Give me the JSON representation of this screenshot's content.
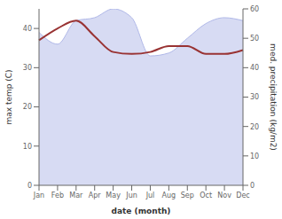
{
  "chart_data": {
    "type": "line",
    "categories": [
      "Jan",
      "Feb",
      "Mar",
      "Apr",
      "May",
      "Jun",
      "Jul",
      "Aug",
      "Sep",
      "Oct",
      "Nov",
      "Dec"
    ],
    "series": [
      {
        "type": "area",
        "axis": "y2",
        "color": "#b0b8e8",
        "values": [
          52,
          48,
          56,
          57,
          60,
          57,
          44,
          45,
          50,
          55,
          57,
          56
        ]
      },
      {
        "type": "line",
        "color": "#993333",
        "values": [
          37,
          40,
          42,
          38,
          34,
          33.5,
          34,
          35.5,
          35.5,
          33.5,
          33.5,
          34.5
        ]
      }
    ],
    "xlabel": "date (month)",
    "ylabel": "max temp (C)",
    "y2label": "med. precipitation (kg/m2)",
    "ylim": [
      0,
      45
    ],
    "yticks": [
      0,
      10,
      20,
      30,
      40
    ],
    "y2lim": [
      0,
      60
    ],
    "y2ticks": [
      0,
      10,
      20,
      30,
      40,
      50,
      60
    ],
    "grid": false
  }
}
